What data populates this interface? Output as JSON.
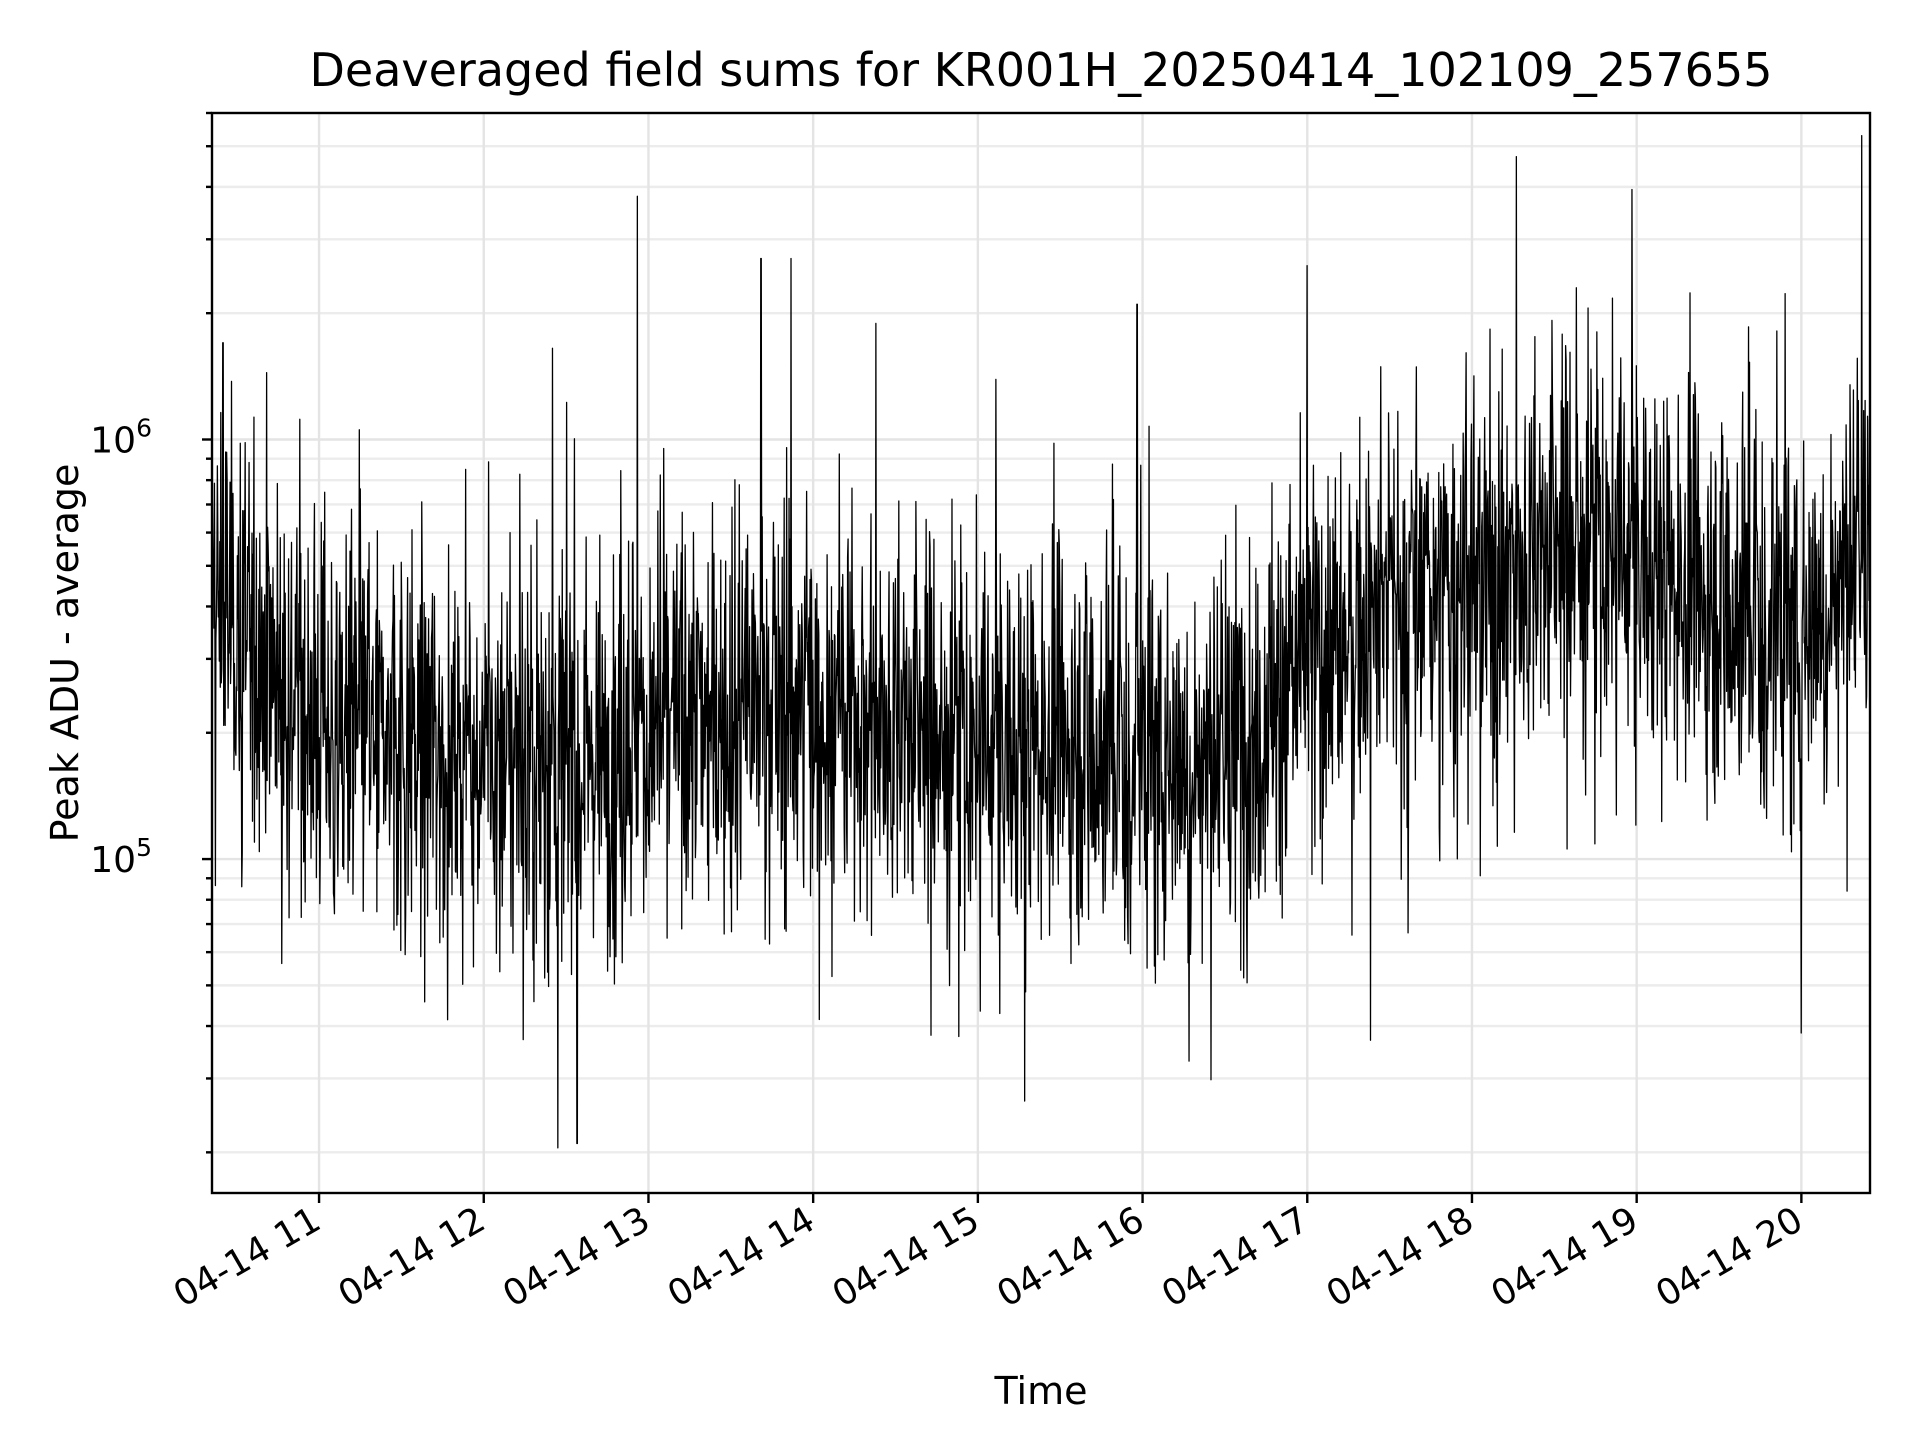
{
  "chart_data": {
    "type": "line",
    "title": "Deaveraged field sums for KR001H_20250414_102109_257655",
    "xlabel": "Time",
    "ylabel": "Peak ADU - average",
    "yscale": "log",
    "ylim": [
      16000,
      6000000
    ],
    "xlim": [
      "2025-04-14 10:21",
      "2025-04-14 20:25"
    ],
    "grid": true,
    "x_tick_labels": [
      "04-14 11",
      "04-14 12",
      "04-14 13",
      "04-14 14",
      "04-14 15",
      "04-14 16",
      "04-14 17",
      "04-14 18",
      "04-14 19",
      "04-14 20"
    ],
    "y_tick_labels": [
      {
        "base": "10",
        "exp": "5",
        "value": 100000
      },
      {
        "base": "10",
        "exp": "6",
        "value": 1000000
      }
    ],
    "color": "#000000",
    "trend": [
      {
        "x": "2025-04-14 10:21",
        "y": 420000
      },
      {
        "x": "2025-04-14 10:40",
        "y": 320000
      },
      {
        "x": "2025-04-14 11:00",
        "y": 210000
      },
      {
        "x": "2025-04-14 11:30",
        "y": 190000
      },
      {
        "x": "2025-04-14 12:00",
        "y": 180000
      },
      {
        "x": "2025-04-14 12:30",
        "y": 175000
      },
      {
        "x": "2025-04-14 13:00",
        "y": 200000
      },
      {
        "x": "2025-04-14 13:30",
        "y": 230000
      },
      {
        "x": "2025-04-14 14:00",
        "y": 240000
      },
      {
        "x": "2025-04-14 14:30",
        "y": 215000
      },
      {
        "x": "2025-04-14 15:00",
        "y": 180000
      },
      {
        "x": "2025-04-14 15:30",
        "y": 200000
      },
      {
        "x": "2025-04-14 16:00",
        "y": 180000
      },
      {
        "x": "2025-04-14 16:30",
        "y": 170000
      },
      {
        "x": "2025-04-14 17:00",
        "y": 300000
      },
      {
        "x": "2025-04-14 17:30",
        "y": 400000
      },
      {
        "x": "2025-04-14 18:00",
        "y": 430000
      },
      {
        "x": "2025-04-14 18:30",
        "y": 560000
      },
      {
        "x": "2025-04-14 19:00",
        "y": 520000
      },
      {
        "x": "2025-04-14 19:30",
        "y": 420000
      },
      {
        "x": "2025-04-14 20:00",
        "y": 360000
      },
      {
        "x": "2025-04-14 20:25",
        "y": 560000
      }
    ],
    "peaks": [
      {
        "x": "2025-04-14 10:25",
        "y": 1700000
      },
      {
        "x": "2025-04-14 12:25",
        "y": 1650000
      },
      {
        "x": "2025-04-14 12:56",
        "y": 3800000
      },
      {
        "x": "2025-04-14 13:41",
        "y": 2700000
      },
      {
        "x": "2025-04-14 13:52",
        "y": 2700000
      },
      {
        "x": "2025-04-14 15:58",
        "y": 2100000
      },
      {
        "x": "2025-04-14 18:38",
        "y": 2300000
      },
      {
        "x": "2025-04-14 20:22",
        "y": 5300000
      }
    ],
    "troughs": [
      {
        "x": "2025-04-14 12:27",
        "y": 20500
      },
      {
        "x": "2025-04-14 12:34",
        "y": 21000
      },
      {
        "x": "2025-04-14 15:17",
        "y": 26500
      },
      {
        "x": "2025-04-14 16:17",
        "y": 33000
      },
      {
        "x": "2025-04-14 17:23",
        "y": 37000
      },
      {
        "x": "2025-04-14 20:00",
        "y": 38500
      }
    ]
  }
}
